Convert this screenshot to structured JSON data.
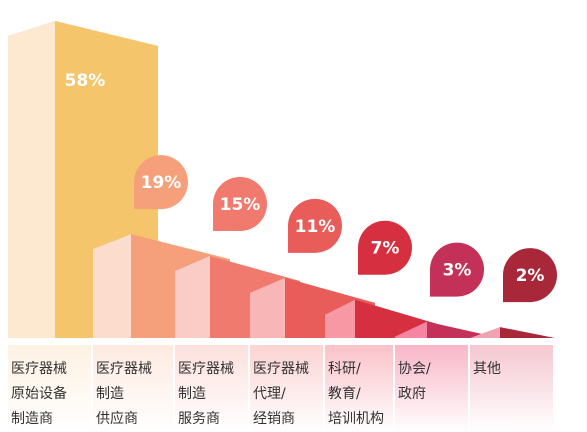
{
  "chart_data": {
    "type": "bar3d",
    "categories": [
      [
        "医疗器械",
        "原始设备",
        "制造商"
      ],
      [
        "医疗器械",
        "制造",
        "供应商"
      ],
      [
        "医疗器械",
        "制造",
        "服务商"
      ],
      [
        "医疗器械",
        "代理/",
        "经销商"
      ],
      [
        "科研/",
        "教育/",
        "培训机构"
      ],
      [
        "协会/",
        "政府"
      ],
      [
        "其他"
      ]
    ],
    "values": [
      58,
      19,
      15,
      11,
      7,
      3,
      2
    ],
    "value_labels": [
      "58%",
      "19%",
      "15%",
      "11%",
      "7%",
      "3%",
      "2%"
    ],
    "colors": [
      "#f5c56b",
      "#f5a07a",
      "#f07a6e",
      "#e85c5a",
      "#d63040",
      "#c33058",
      "#a8283a"
    ],
    "face_colors": [
      "#fde9d0",
      "#fcdccd",
      "#fbcbc6",
      "#f9b6b6",
      "#f799a4",
      "#f585a2",
      "#efa2b2"
    ],
    "ylim": [
      0,
      60
    ]
  }
}
